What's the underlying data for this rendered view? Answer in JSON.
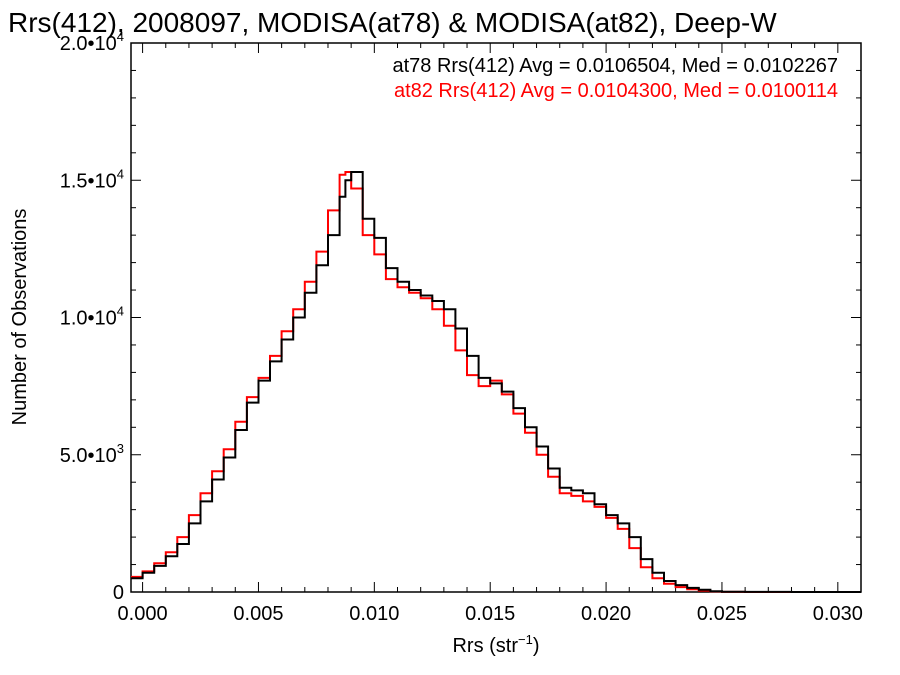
{
  "chart_data": {
    "type": "line",
    "title": "Rrs(412), 2008097, MODISA(at78) & MODISA(at82), Deep-W",
    "xlabel": "Rrs (str",
    "xlabel_sup": "−1",
    "xlabel_close": ")",
    "ylabel": "Number of Observations",
    "xlim": [
      -0.0005,
      0.031
    ],
    "ylim": [
      0,
      20000
    ],
    "xticks": [
      {
        "value": 0.0,
        "label": "0.000"
      },
      {
        "value": 0.005,
        "label": "0.005"
      },
      {
        "value": 0.01,
        "label": "0.010"
      },
      {
        "value": 0.015,
        "label": "0.015"
      },
      {
        "value": 0.02,
        "label": "0.020"
      },
      {
        "value": 0.025,
        "label": "0.025"
      },
      {
        "value": 0.03,
        "label": "0.030"
      }
    ],
    "yticks": [
      {
        "value": 0,
        "label": "0",
        "exp": ""
      },
      {
        "value": 5000,
        "label": "5.0•10",
        "exp": "3"
      },
      {
        "value": 10000,
        "label": "1.0•10",
        "exp": "4"
      },
      {
        "value": 15000,
        "label": "1.5•10",
        "exp": "4"
      },
      {
        "value": 20000,
        "label": "2.0•10",
        "exp": "4"
      }
    ],
    "grid": false,
    "legend_placement": "top-right",
    "series": [
      {
        "name": "at78",
        "color": "#000000",
        "label": "at78 Rrs(412) Avg = 0.0106504, Med = 0.0102267",
        "x": [
          -0.0005,
          0.0,
          0.0005,
          0.001,
          0.0015,
          0.002,
          0.0025,
          0.003,
          0.0035,
          0.004,
          0.0045,
          0.005,
          0.0055,
          0.006,
          0.0065,
          0.007,
          0.0075,
          0.008,
          0.0085,
          0.00875,
          0.009,
          0.0095,
          0.01,
          0.0105,
          0.011,
          0.0115,
          0.012,
          0.0125,
          0.013,
          0.0135,
          0.014,
          0.0145,
          0.015,
          0.0155,
          0.016,
          0.0165,
          0.017,
          0.0175,
          0.018,
          0.0185,
          0.019,
          0.0195,
          0.02,
          0.0205,
          0.021,
          0.0215,
          0.022,
          0.0225,
          0.023,
          0.0235,
          0.024,
          0.0245,
          0.025,
          0.026,
          0.028,
          0.031
        ],
        "y": [
          500,
          700,
          950,
          1300,
          1750,
          2500,
          3300,
          4100,
          4900,
          5900,
          6900,
          7700,
          8400,
          9200,
          10000,
          10900,
          11900,
          13000,
          14400,
          15000,
          15300,
          13600,
          12900,
          11800,
          11300,
          11000,
          10800,
          10600,
          10300,
          9600,
          8600,
          7800,
          7600,
          7300,
          6700,
          6000,
          5300,
          4500,
          3800,
          3700,
          3600,
          3200,
          2800,
          2500,
          2000,
          1200,
          700,
          400,
          250,
          150,
          80,
          30,
          10,
          5,
          0,
          0
        ]
      },
      {
        "name": "at82",
        "color": "#ff0000",
        "label": "at82 Rrs(412) Avg = 0.0104300, Med = 0.0100114",
        "x": [
          -0.0005,
          0.0,
          0.0005,
          0.001,
          0.0015,
          0.002,
          0.0025,
          0.003,
          0.0035,
          0.004,
          0.0045,
          0.005,
          0.0055,
          0.006,
          0.0065,
          0.007,
          0.0075,
          0.008,
          0.0085,
          0.00875,
          0.009,
          0.0095,
          0.01,
          0.0105,
          0.011,
          0.0115,
          0.012,
          0.0125,
          0.013,
          0.0135,
          0.014,
          0.0145,
          0.015,
          0.0155,
          0.016,
          0.0165,
          0.017,
          0.0175,
          0.018,
          0.0185,
          0.019,
          0.0195,
          0.02,
          0.0205,
          0.021,
          0.0215,
          0.022,
          0.0225,
          0.023,
          0.0235,
          0.024,
          0.0245,
          0.025,
          0.026,
          0.028,
          0.031
        ],
        "y": [
          550,
          750,
          1050,
          1450,
          2000,
          2800,
          3600,
          4400,
          5200,
          6200,
          7100,
          7800,
          8600,
          9500,
          10300,
          11300,
          12400,
          13900,
          15200,
          15300,
          14700,
          13000,
          12300,
          11400,
          11100,
          10900,
          10700,
          10300,
          9700,
          8800,
          7900,
          7500,
          7700,
          7200,
          6500,
          5800,
          5000,
          4200,
          3600,
          3500,
          3300,
          3100,
          2700,
          2300,
          1600,
          900,
          500,
          300,
          180,
          100,
          50,
          20,
          5,
          0,
          0,
          0
        ]
      }
    ]
  }
}
